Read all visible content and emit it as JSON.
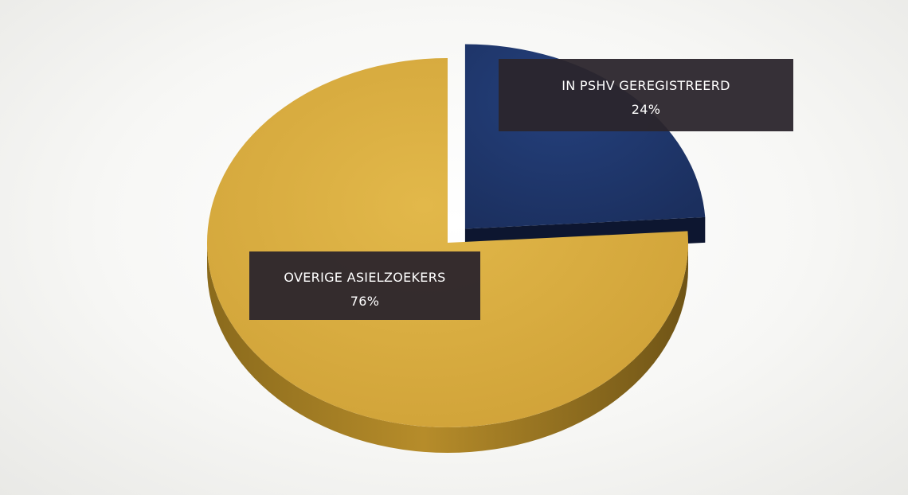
{
  "chart_data": {
    "type": "pie",
    "title": "",
    "slices": [
      {
        "name": "OVERIGE ASIELZOEKERS",
        "value": 76,
        "value_label": "76%",
        "color": "#d9ae3f",
        "exploded": false
      },
      {
        "name": "IN PSHV GEREGISTREERD",
        "value": 24,
        "value_label": "24%",
        "color": "#1f3466",
        "exploded": true
      }
    ],
    "style": "3d",
    "legend": "none",
    "label_box_color": "#2b252c"
  }
}
